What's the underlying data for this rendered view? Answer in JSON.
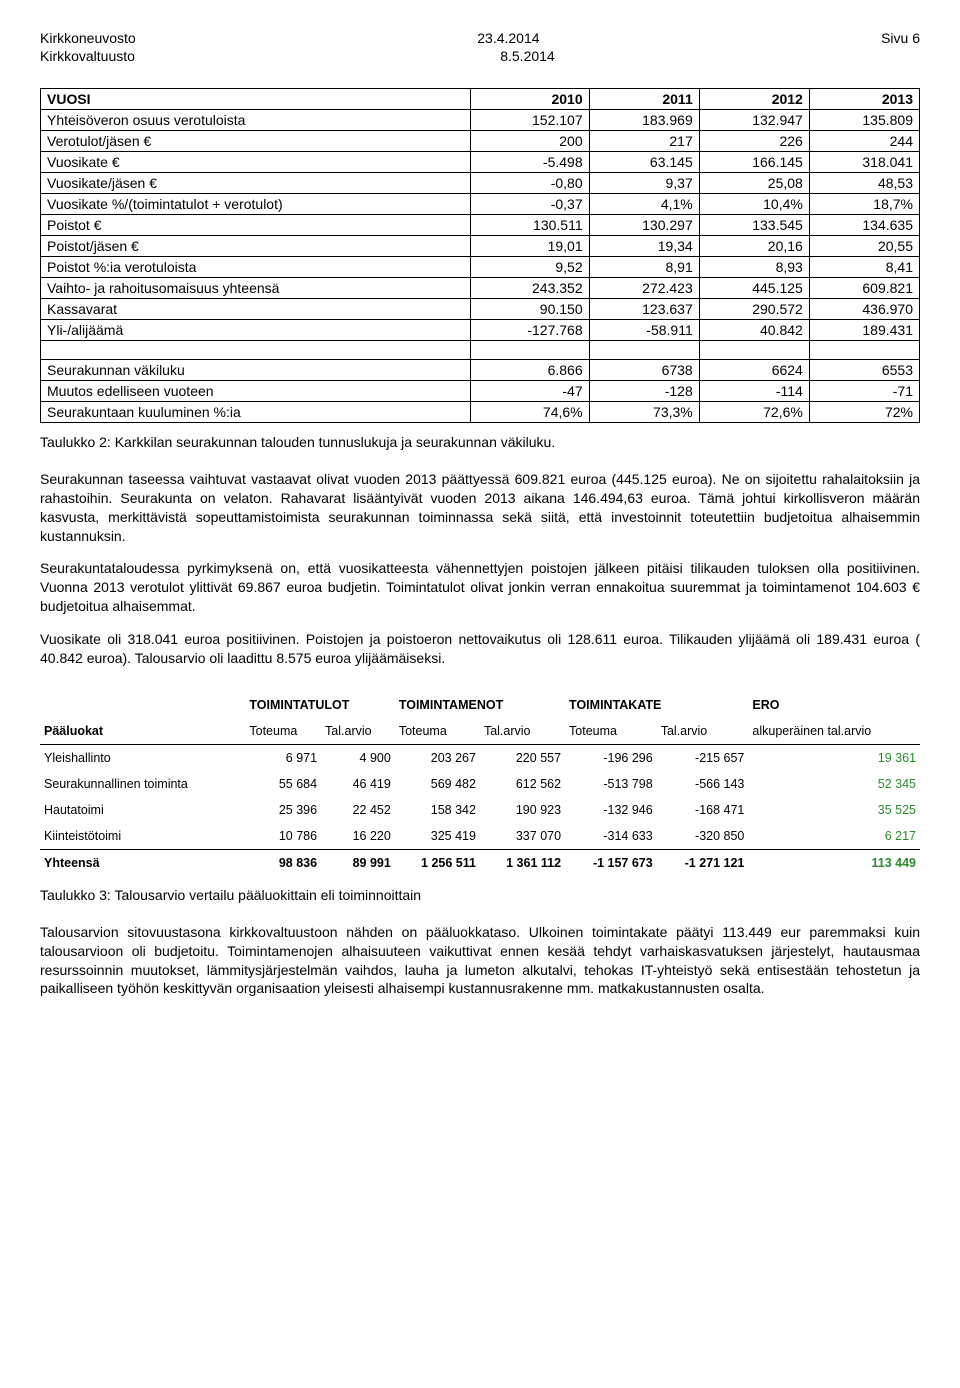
{
  "header": {
    "left1": "Kirkkoneuvosto",
    "left2": "Kirkkovaltuusto",
    "center1": "23.4.2014",
    "center2": "8.5.2014",
    "right1": "Sivu 6"
  },
  "table1": {
    "headers": [
      "VUOSI",
      "2010",
      "2011",
      "2012",
      "2013"
    ],
    "rows": [
      [
        "Yhteisöveron osuus verotuloista",
        "152.107",
        "183.969",
        "132.947",
        "135.809"
      ],
      [
        "Verotulot/jäsen €",
        "200",
        "217",
        "226",
        "244"
      ],
      [
        "Vuosikate €",
        "-5.498",
        "63.145",
        "166.145",
        "318.041"
      ],
      [
        "Vuosikate/jäsen €",
        "-0,80",
        "9,37",
        "25,08",
        "48,53"
      ],
      [
        "Vuosikate %/(toimintatulot + verotulot)",
        "-0,37",
        "4,1%",
        "10,4%",
        "18,7%"
      ],
      [
        "Poistot €",
        "130.511",
        "130.297",
        "133.545",
        "134.635"
      ],
      [
        "Poistot/jäsen €",
        "19,01",
        "19,34",
        "20,16",
        "20,55"
      ],
      [
        "Poistot %:ia verotuloista",
        "9,52",
        "8,91",
        "8,93",
        "8,41"
      ],
      [
        "Vaihto- ja rahoitusomaisuus yhteensä",
        "243.352",
        "272.423",
        "445.125",
        "609.821"
      ],
      [
        "Kassavarat",
        "90.150",
        "123.637",
        "290.572",
        "436.970"
      ],
      [
        "Yli-/alijäämä",
        "-127.768",
        "-58.911",
        "40.842",
        "189.431"
      ]
    ],
    "rows2": [
      [
        "Seurakunnan väkiluku",
        "6.866",
        "6738",
        "6624",
        "6553"
      ],
      [
        "Muutos edelliseen vuoteen",
        "-47",
        "-128",
        "-114",
        "-71"
      ],
      [
        "Seurakuntaan kuuluminen %:ia",
        "74,6%",
        "73,3%",
        "72,6%",
        "72%"
      ]
    ]
  },
  "caption1": "Taulukko 2: Karkkilan seurakunnan talouden tunnuslukuja ja seurakunnan väkiluku.",
  "para1": "Seurakunnan taseessa vaihtuvat vastaavat olivat vuoden 2013 päättyessä 609.821 euroa (445.125 euroa). Ne on sijoitettu rahalaitoksiin ja rahastoihin. Seurakunta on velaton. Rahavarat lisääntyivät vuoden 2013 aikana 146.494,63 euroa. Tämä johtui kirkollisveron määrän kasvusta, merkittävistä sopeuttamistoimista seurakunnan toiminnassa sekä siitä, että investoinnit toteutettiin budjetoitua alhaisemmin kustannuksin.",
  "para2": "Seurakuntataloudessa pyrkimyksenä on, että vuosikatteesta vähennettyjen poistojen jälkeen pitäisi tilikauden tuloksen olla positiivinen. Vuonna 2013 verotulot ylittivät 69.867 euroa budjetin. Toimintatulot olivat jonkin verran ennakoitua suuremmat ja toimintamenot 104.603 € budjetoitua alhaisemmat.",
  "para3": "Vuosikate oli 318.041 euroa positiivinen. Poistojen ja poistoeron nettovaikutus oli 128.611 euroa. Tilikauden ylijäämä oli 189.431 euroa ( 40.842 euroa). Talousarvio oli laadittu 8.575 euroa ylijäämäiseksi.",
  "budget": {
    "topHeaders": [
      "",
      "TOIMINTATULOT",
      "TOIMINTAMENOT",
      "TOIMINTAKATE",
      "ERO"
    ],
    "subHeaders": [
      "Pääluokat",
      "Toteuma",
      "Tal.arvio",
      "Toteuma",
      "Tal.arvio",
      "Toteuma",
      "Tal.arvio",
      "alkuperäinen tal.arvio"
    ],
    "rows": [
      {
        "label": "Yleishallinto",
        "c": [
          "6 971",
          "4 900",
          "203 267",
          "220 557",
          "-196 296",
          "-215 657"
        ],
        "ero": "19 361"
      },
      {
        "label": "Seurakunnallinen toiminta",
        "c": [
          "55 684",
          "46 419",
          "569 482",
          "612 562",
          "-513 798",
          "-566 143"
        ],
        "ero": "52 345"
      },
      {
        "label": "Hautatoimi",
        "c": [
          "25 396",
          "22 452",
          "158 342",
          "190 923",
          "-132 946",
          "-168 471"
        ],
        "ero": "35 525"
      },
      {
        "label": "Kiinteistötoimi",
        "c": [
          "10 786",
          "16 220",
          "325 419",
          "337 070",
          "-314 633",
          "-320 850"
        ],
        "ero": "6 217"
      }
    ],
    "total": {
      "label": "Yhteensä",
      "c": [
        "98 836",
        "89 991",
        "1 256 511",
        "1 361 112",
        "-1 157 673",
        "-1 271 121"
      ],
      "ero": "113 449"
    }
  },
  "caption2": "Taulukko 3: Talousarvio vertailu pääluokittain eli toiminnoittain",
  "para4": "Talousarvion sitovuustasona kirkkovaltuustoon nähden on pääluokkataso. Ulkoinen toimintakate päätyi 113.449 eur paremmaksi kuin talousarvioon oli budjetoitu. Toimintamenojen alhaisuuteen vaikuttivat ennen kesää tehdyt varhaiskasvatuksen järjestelyt, hautausmaa resurssoinnin muutokset, lämmitysjärjestelmän vaihdos, lauha ja lumeton alkutalvi, tehokas IT-yhteistyö sekä entisestään tehostetun ja paikalliseen työhön keskittyvän organisaation yleisesti alhaisempi kustannusrakenne mm. matkakustannusten osalta."
}
